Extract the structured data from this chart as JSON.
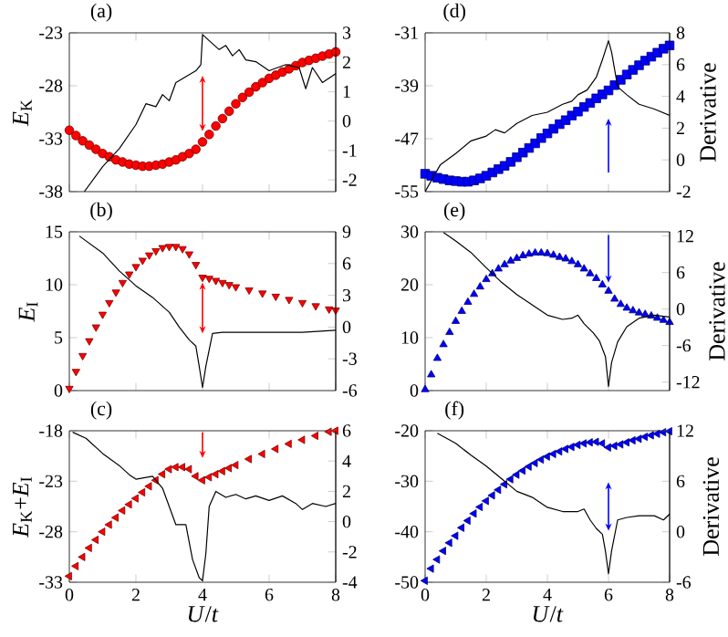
{
  "chart_data": [
    {
      "type": "scatter",
      "title": "(a)",
      "ylabel": "*E*$_{K}$",
      "xlim": [
        0,
        8
      ],
      "xticks": [
        0,
        2,
        4,
        6,
        8
      ],
      "ylim": [
        -38,
        -23
      ],
      "yticks": [
        -38,
        -33,
        -28,
        -23
      ],
      "y2lim": [
        -2.4,
        3
      ],
      "y2ticks": [
        -2,
        -1,
        0,
        1,
        2,
        3
      ],
      "tick_labels": "y",
      "series": [
        {
          "marker": "circle",
          "color": "#ff0000",
          "x": [
            0,
            0.2,
            0.4,
            0.6,
            0.8,
            1.0,
            1.2,
            1.4,
            1.6,
            1.8,
            2.0,
            2.2,
            2.4,
            2.6,
            2.8,
            3.0,
            3.2,
            3.4,
            3.6,
            3.8,
            4.0,
            4.2,
            4.4,
            4.6,
            4.8,
            5.0,
            5.2,
            5.4,
            5.6,
            5.8,
            6.0,
            6.2,
            6.4,
            6.6,
            6.8,
            7.0,
            7.2,
            7.4,
            7.6,
            7.8,
            8.0
          ],
          "values": [
            -32.2,
            -32.7,
            -33.2,
            -33.6,
            -34.0,
            -34.4,
            -34.7,
            -35.0,
            -35.2,
            -35.4,
            -35.5,
            -35.6,
            -35.6,
            -35.5,
            -35.4,
            -35.2,
            -35.0,
            -34.7,
            -34.4,
            -34.0,
            -33.3,
            -32.6,
            -31.8,
            -31.1,
            -30.4,
            -29.7,
            -29.1,
            -28.6,
            -28.1,
            -27.7,
            -27.3,
            -27.0,
            -26.7,
            -26.4,
            -26.1,
            -25.8,
            -25.6,
            -25.4,
            -25.2,
            -25.0,
            -24.8
          ]
        },
        {
          "type": "line",
          "axis": "y2",
          "color": "#000000",
          "x": [
            0.45,
            1.0,
            1.5,
            2.0,
            2.3,
            2.6,
            2.8,
            3.0,
            3.2,
            3.5,
            3.8,
            3.95,
            4.0,
            4.3,
            4.5,
            4.7,
            4.9,
            5.1,
            5.3,
            5.6,
            6.0,
            6.5,
            6.9,
            7.1,
            7.3,
            7.6,
            8.0
          ],
          "values": [
            -2.4,
            -1.55,
            -0.94,
            -0.12,
            0.59,
            0.49,
            0.9,
            0.69,
            1.31,
            1.51,
            1.71,
            1.92,
            2.94,
            2.63,
            2.43,
            2.57,
            2.22,
            2.43,
            2.08,
            2.02,
            1.71,
            1.92,
            1.82,
            1.1,
            1.82,
            1.31,
            1.61
          ]
        }
      ]
    },
    {
      "type": "scatter",
      "title": "(d)",
      "y2label": "Derivative",
      "xlim": [
        0,
        8
      ],
      "xticks": [
        0,
        2,
        4,
        6,
        8
      ],
      "ylim": [
        -55,
        -31
      ],
      "yticks": [
        -55,
        -47,
        -39,
        -31
      ],
      "y2lim": [
        -2,
        8
      ],
      "y2ticks": [
        -2,
        0,
        2,
        4,
        6,
        8
      ],
      "tick_labels": "y",
      "series": [
        {
          "marker": "square",
          "color": "#0000ff",
          "x": [
            0,
            0.2,
            0.4,
            0.6,
            0.8,
            1.0,
            1.2,
            1.4,
            1.6,
            1.8,
            2.0,
            2.2,
            2.4,
            2.6,
            2.8,
            3.0,
            3.2,
            3.4,
            3.6,
            3.8,
            4.0,
            4.2,
            4.4,
            4.6,
            4.8,
            5.0,
            5.2,
            5.4,
            5.6,
            5.8,
            6.0,
            6.2,
            6.4,
            6.6,
            6.8,
            7.0,
            7.2,
            7.4,
            7.6,
            7.8,
            8.0
          ],
          "values": [
            -52.3,
            -52.6,
            -52.9,
            -53.1,
            -53.3,
            -53.4,
            -53.5,
            -53.5,
            -53.3,
            -53.0,
            -52.6,
            -52.1,
            -51.6,
            -51.1,
            -50.5,
            -49.8,
            -49.1,
            -48.4,
            -47.7,
            -46.9,
            -46.2,
            -45.5,
            -44.8,
            -44.2,
            -43.5,
            -42.9,
            -42.2,
            -41.6,
            -40.9,
            -40.3,
            -39.7,
            -38.9,
            -38.1,
            -37.3,
            -36.6,
            -35.9,
            -35.2,
            -34.6,
            -34.0,
            -33.4,
            -32.9
          ]
        },
        {
          "type": "line",
          "axis": "y2",
          "color": "#000000",
          "x": [
            0.0,
            0.5,
            1.0,
            1.5,
            2.0,
            2.3,
            2.6,
            3.0,
            3.5,
            4.0,
            4.5,
            4.8,
            5.0,
            5.3,
            5.6,
            5.8,
            6.0,
            6.1,
            6.3,
            6.6,
            7.0,
            7.5,
            8.0
          ],
          "values": [
            -2.0,
            -0.3,
            0.4,
            1.2,
            1.5,
            1.9,
            1.7,
            2.3,
            2.8,
            3.0,
            3.5,
            3.7,
            4.1,
            4.4,
            5.2,
            6.3,
            7.5,
            6.8,
            4.6,
            4.1,
            3.5,
            3.2,
            2.8
          ]
        }
      ]
    },
    {
      "type": "scatter",
      "title": "(b)",
      "ylabel": "*E*$_{I}$",
      "xlim": [
        0,
        8
      ],
      "xticks": [
        0,
        2,
        4,
        6,
        8
      ],
      "ylim": [
        0,
        15
      ],
      "yticks": [
        0,
        5,
        10,
        15
      ],
      "y2lim": [
        -6,
        9
      ],
      "y2ticks": [
        -6,
        -3,
        0,
        3,
        6,
        9
      ],
      "tick_labels": "y",
      "series": [
        {
          "marker": "triangle-down",
          "color": "#ff0000",
          "x": [
            0,
            0.2,
            0.4,
            0.6,
            0.8,
            1.0,
            1.2,
            1.4,
            1.6,
            1.8,
            2.0,
            2.2,
            2.4,
            2.6,
            2.8,
            3.0,
            3.2,
            3.4,
            3.6,
            3.8,
            4.0,
            4.2,
            4.4,
            4.6,
            4.8,
            5.0,
            5.4,
            5.8,
            6.2,
            6.6,
            7.0,
            7.4,
            7.8,
            8.0
          ],
          "values": [
            0.2,
            1.8,
            3.3,
            4.7,
            6.0,
            7.2,
            8.3,
            9.3,
            10.2,
            11.0,
            11.7,
            12.3,
            12.8,
            13.2,
            13.5,
            13.6,
            13.6,
            13.4,
            12.9,
            11.9,
            10.7,
            10.6,
            10.4,
            10.2,
            10.0,
            9.8,
            9.5,
            9.2,
            8.9,
            8.6,
            8.3,
            8.0,
            7.7,
            7.6
          ]
        },
        {
          "type": "line",
          "axis": "y2",
          "color": "#000000",
          "x": [
            0.3,
            1.0,
            1.5,
            2.0,
            2.5,
            3.0,
            3.3,
            3.6,
            3.8,
            3.9,
            4.0,
            4.1,
            4.3,
            4.6,
            5.0,
            6.0,
            7.0,
            8.0
          ],
          "values": [
            8.6,
            7.0,
            5.3,
            3.9,
            2.8,
            1.4,
            0.0,
            -1.2,
            -1.8,
            -3.7,
            -5.7,
            -3.7,
            -0.6,
            -0.5,
            -0.5,
            -0.5,
            -0.5,
            -0.3
          ]
        }
      ]
    },
    {
      "type": "scatter",
      "title": "(e)",
      "y2label": "Derivative",
      "xlim": [
        0,
        8
      ],
      "xticks": [
        0,
        2,
        4,
        6,
        8
      ],
      "ylim": [
        0,
        30
      ],
      "yticks": [
        0,
        10,
        20,
        30
      ],
      "y2lim": [
        -13.4,
        12.7
      ],
      "y2ticks": [
        -12,
        -6,
        0,
        6,
        12
      ],
      "tick_labels": "y",
      "series": [
        {
          "marker": "triangle",
          "color": "#0000ff",
          "x": [
            0,
            0.2,
            0.4,
            0.6,
            0.8,
            1.0,
            1.2,
            1.4,
            1.6,
            1.8,
            2.0,
            2.2,
            2.4,
            2.6,
            2.8,
            3.0,
            3.2,
            3.4,
            3.6,
            3.8,
            4.0,
            4.2,
            4.4,
            4.6,
            4.8,
            5.0,
            5.2,
            5.4,
            5.6,
            5.8,
            6.0,
            6.2,
            6.4,
            6.6,
            6.8,
            7.0,
            7.2,
            7.4,
            7.6,
            7.8,
            8.0
          ],
          "values": [
            0.2,
            3.0,
            6.1,
            8.7,
            11.0,
            13.1,
            15.0,
            16.7,
            18.2,
            19.6,
            21.0,
            22.1,
            23.0,
            23.8,
            24.5,
            25.0,
            25.5,
            25.8,
            26.0,
            26.0,
            25.9,
            25.6,
            25.2,
            24.9,
            24.4,
            23.8,
            23.0,
            22.1,
            21.2,
            20.0,
            18.8,
            17.3,
            16.3,
            15.6,
            15.1,
            14.7,
            14.4,
            14.1,
            13.7,
            13.3,
            12.9
          ]
        },
        {
          "type": "line",
          "axis": "y2",
          "color": "#000000",
          "x": [
            0.6,
            1.0,
            1.5,
            2.0,
            2.5,
            3.0,
            3.5,
            4.0,
            4.5,
            4.8,
            5.0,
            5.2,
            5.5,
            5.7,
            5.9,
            6.0,
            6.1,
            6.3,
            6.6,
            7.0,
            7.5,
            8.0
          ],
          "values": [
            12.6,
            11.2,
            9.3,
            6.8,
            4.4,
            2.4,
            0.7,
            -1.0,
            -1.7,
            -1.5,
            -1.0,
            -2.4,
            -3.9,
            -5.2,
            -7.8,
            -12.7,
            -8.8,
            -5.4,
            -2.9,
            -1.5,
            -1.0,
            -1.3
          ]
        }
      ]
    },
    {
      "type": "scatter",
      "title": "(c)",
      "xlabel": "*U*/*t*",
      "ylabel": "*E*$_{K}$+*E*$_{I}$",
      "xlim": [
        0,
        8
      ],
      "xticks": [
        0,
        2,
        4,
        6,
        8
      ],
      "ylim": [
        -33,
        -18
      ],
      "yticks": [
        -33,
        -28,
        -23,
        -18
      ],
      "y2lim": [
        -4,
        6
      ],
      "y2ticks": [
        -4,
        -2,
        0,
        2,
        4,
        6
      ],
      "series": [
        {
          "marker": "triangle-left",
          "color": "#ff0000",
          "x": [
            0,
            0.2,
            0.4,
            0.6,
            0.8,
            1.0,
            1.2,
            1.4,
            1.6,
            1.8,
            2.0,
            2.2,
            2.4,
            2.6,
            2.8,
            3.0,
            3.2,
            3.4,
            3.6,
            3.8,
            4.0,
            4.2,
            4.4,
            4.6,
            4.8,
            5.0,
            5.4,
            5.8,
            6.2,
            6.6,
            7.0,
            7.4,
            7.8,
            8.0
          ],
          "values": [
            -32.4,
            -31.4,
            -30.5,
            -29.6,
            -28.8,
            -28.0,
            -27.3,
            -26.6,
            -25.9,
            -25.3,
            -24.7,
            -24.1,
            -23.5,
            -22.9,
            -22.3,
            -21.8,
            -21.6,
            -21.6,
            -21.8,
            -22.5,
            -22.9,
            -22.6,
            -22.3,
            -22.0,
            -21.7,
            -21.4,
            -20.8,
            -20.3,
            -19.8,
            -19.3,
            -18.9,
            -18.5,
            -18.1,
            -18.0
          ]
        },
        {
          "type": "line",
          "axis": "y2",
          "color": "#000000",
          "x": [
            0.1,
            0.5,
            1.0,
            1.5,
            1.8,
            2.0,
            2.5,
            2.8,
            3.0,
            3.2,
            3.5,
            3.7,
            3.9,
            4.0,
            4.1,
            4.2,
            4.4,
            4.7,
            5.0,
            5.3,
            5.6,
            6.0,
            6.4,
            6.8,
            7.0,
            7.3,
            7.7,
            8.0
          ],
          "values": [
            5.9,
            5.5,
            4.5,
            3.7,
            3.1,
            2.8,
            3.0,
            2.2,
            1.0,
            -0.2,
            -0.2,
            -2.5,
            -3.7,
            -3.9,
            -2.1,
            1.0,
            2.0,
            1.6,
            1.8,
            1.5,
            1.7,
            1.4,
            1.7,
            1.2,
            0.8,
            1.2,
            1.0,
            1.2
          ]
        }
      ]
    },
    {
      "type": "scatter",
      "title": "(f)",
      "xlabel": "*U*/*t*",
      "y2label": "Derivative",
      "xlim": [
        0,
        8
      ],
      "xticks": [
        0,
        2,
        4,
        6,
        8
      ],
      "ylim": [
        -50,
        -20
      ],
      "yticks": [
        -50,
        -40,
        -30,
        -20
      ],
      "y2lim": [
        -6,
        12
      ],
      "y2ticks": [
        -6,
        0,
        6,
        12
      ],
      "series": [
        {
          "marker": "triangle-left",
          "color": "#0000ff",
          "x": [
            0,
            0.2,
            0.4,
            0.6,
            0.8,
            1.0,
            1.2,
            1.4,
            1.6,
            1.8,
            2.0,
            2.2,
            2.4,
            2.6,
            2.8,
            3.0,
            3.2,
            3.4,
            3.6,
            3.8,
            4.0,
            4.2,
            4.4,
            4.6,
            4.8,
            5.0,
            5.2,
            5.4,
            5.6,
            5.8,
            6.0,
            6.2,
            6.4,
            6.6,
            6.8,
            7.0,
            7.2,
            7.4,
            7.6,
            7.8,
            8.0
          ],
          "values": [
            -49.7,
            -47.3,
            -45.5,
            -43.8,
            -42.2,
            -40.8,
            -39.2,
            -37.8,
            -36.4,
            -35.1,
            -33.9,
            -32.8,
            -31.7,
            -30.6,
            -29.6,
            -28.7,
            -27.9,
            -27.1,
            -26.4,
            -25.7,
            -25.1,
            -24.6,
            -24.1,
            -23.6,
            -23.2,
            -22.8,
            -22.5,
            -22.3,
            -22.2,
            -22.5,
            -23.3,
            -23.0,
            -22.7,
            -22.3,
            -21.9,
            -21.6,
            -21.2,
            -20.9,
            -20.6,
            -20.3,
            -20.1
          ]
        },
        {
          "type": "line",
          "axis": "y2",
          "color": "#000000",
          "x": [
            0.4,
            1.0,
            1.5,
            2.0,
            2.5,
            3.0,
            3.5,
            4.0,
            4.5,
            5.0,
            5.2,
            5.4,
            5.6,
            5.8,
            5.9,
            6.0,
            6.1,
            6.3,
            6.6,
            7.0,
            7.5,
            7.8,
            8.0
          ],
          "values": [
            11.7,
            10.5,
            9.1,
            7.8,
            6.3,
            4.8,
            4.1,
            2.9,
            2.4,
            2.4,
            2.7,
            1.4,
            0.4,
            -0.3,
            -2.3,
            -5.0,
            -2.3,
            1.4,
            1.7,
            1.9,
            1.9,
            1.4,
            2.1
          ]
        }
      ]
    }
  ]
}
